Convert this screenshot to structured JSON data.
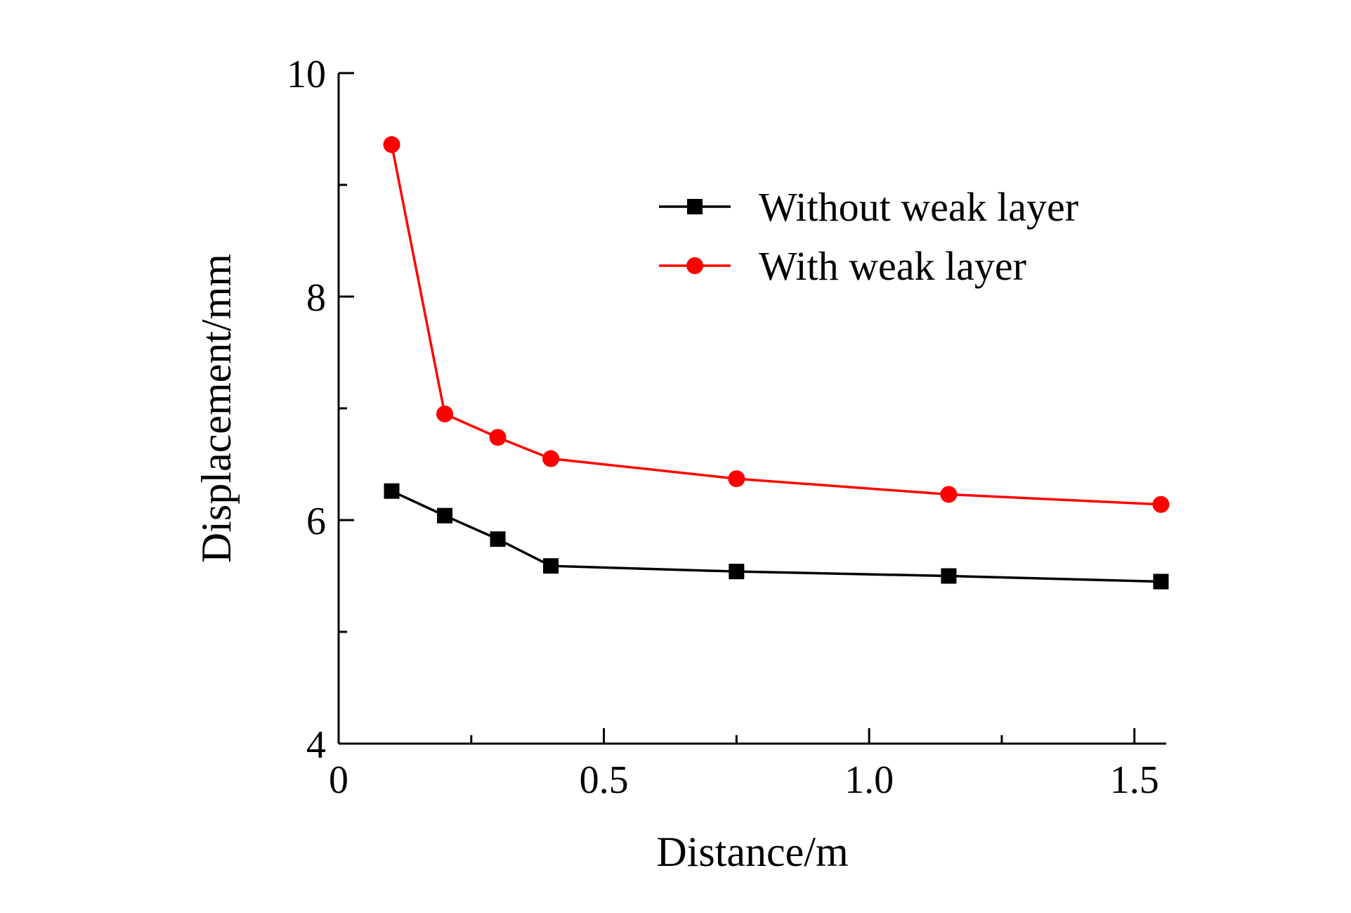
{
  "chart_data": {
    "type": "line",
    "title": "",
    "xlabel": "Distance/m",
    "ylabel": "Displacement/mm",
    "xlim": [
      0,
      1.56
    ],
    "ylim": [
      4,
      10
    ],
    "xticks": [
      0,
      0.5,
      1.0,
      1.5
    ],
    "xtick_labels": [
      "0",
      "0.5",
      "1.0",
      "1.5"
    ],
    "xminor_ticks": [
      0.25,
      0.75,
      1.25
    ],
    "yticks": [
      4,
      6,
      8,
      10
    ],
    "ytick_labels": [
      "4",
      "6",
      "8",
      "10"
    ],
    "yminor_ticks": [
      5,
      7,
      9
    ],
    "grid": false,
    "legend_position": "top-right",
    "series": [
      {
        "name": "Without weak layer",
        "color": "#000000",
        "marker": "square",
        "x": [
          0.1,
          0.2,
          0.3,
          0.4,
          0.75,
          1.15,
          1.55
        ],
        "y": [
          6.26,
          6.04,
          5.83,
          5.59,
          5.54,
          5.5,
          5.45
        ]
      },
      {
        "name": "With weak layer",
        "color": "#ff0000",
        "marker": "circle",
        "x": [
          0.1,
          0.2,
          0.3,
          0.4,
          0.75,
          1.15,
          1.55
        ],
        "y": [
          9.36,
          6.95,
          6.74,
          6.55,
          6.37,
          6.23,
          6.14
        ]
      }
    ]
  }
}
